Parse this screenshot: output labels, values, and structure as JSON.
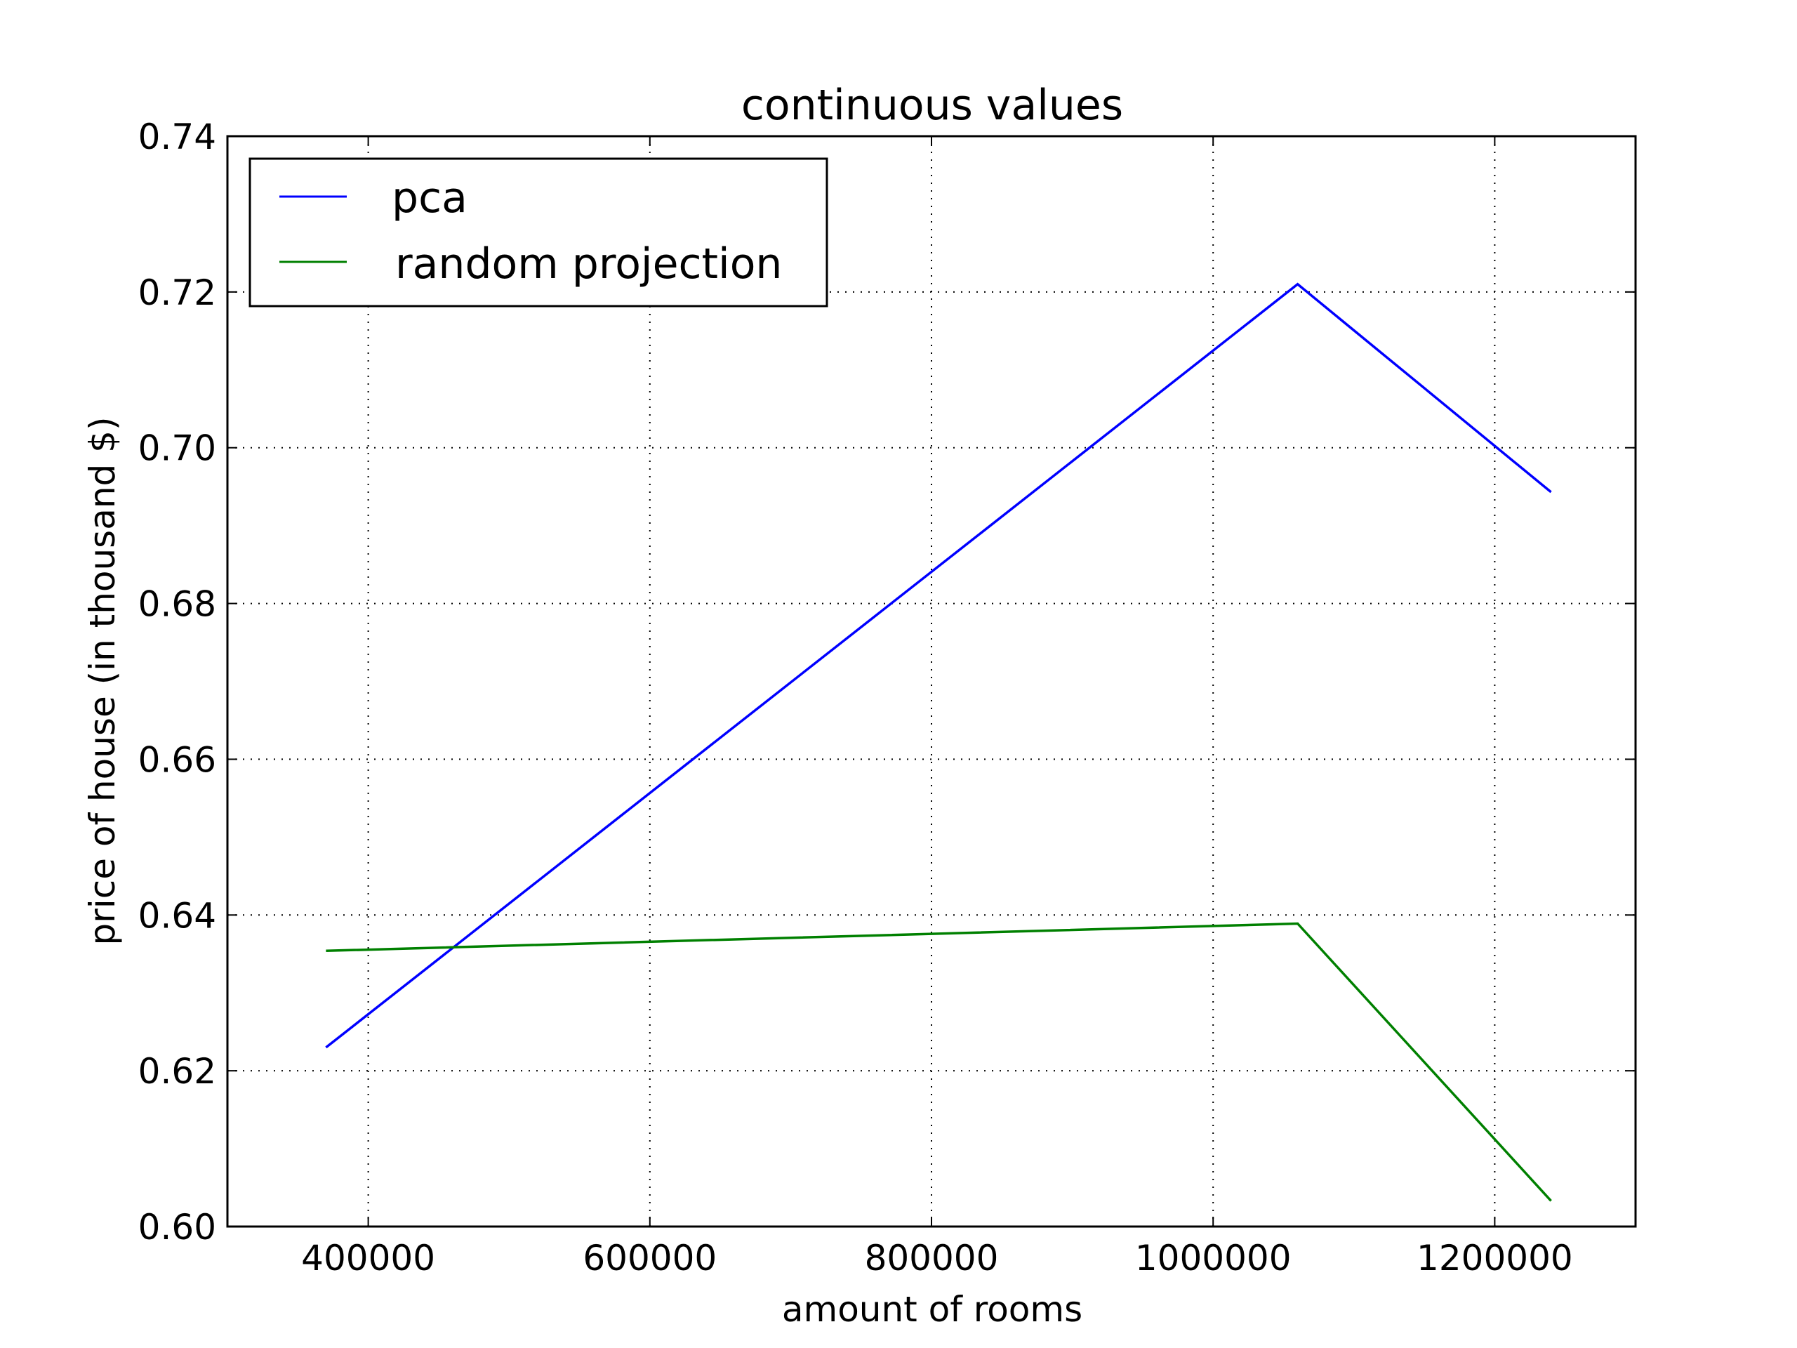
{
  "chart_data": {
    "type": "line",
    "title": "continuous values",
    "xlabel": "amount of rooms",
    "ylabel": "price of house (in thousand $)",
    "xlim": [
      300000,
      1300000
    ],
    "ylim": [
      0.6,
      0.74
    ],
    "x_ticks": [
      400000,
      600000,
      800000,
      1000000,
      1200000
    ],
    "x_tick_labels": [
      "400000",
      "600000",
      "800000",
      "1000000",
      "1200000"
    ],
    "y_ticks": [
      0.6,
      0.62,
      0.64,
      0.66,
      0.68,
      0.7,
      0.72,
      0.74
    ],
    "y_tick_labels": [
      "0.60",
      "0.62",
      "0.64",
      "0.66",
      "0.68",
      "0.70",
      "0.72",
      "0.74"
    ],
    "grid": true,
    "legend_position": "top-left",
    "series": [
      {
        "name": "pca",
        "color": "#0000ff",
        "x": [
          370000,
          1060000,
          1240000
        ],
        "y": [
          0.623,
          0.721,
          0.6943
        ]
      },
      {
        "name": "random projection",
        "color": "#008000",
        "x": [
          370000,
          1060000,
          1240000
        ],
        "y": [
          0.6354,
          0.6389,
          0.6033
        ]
      }
    ]
  }
}
